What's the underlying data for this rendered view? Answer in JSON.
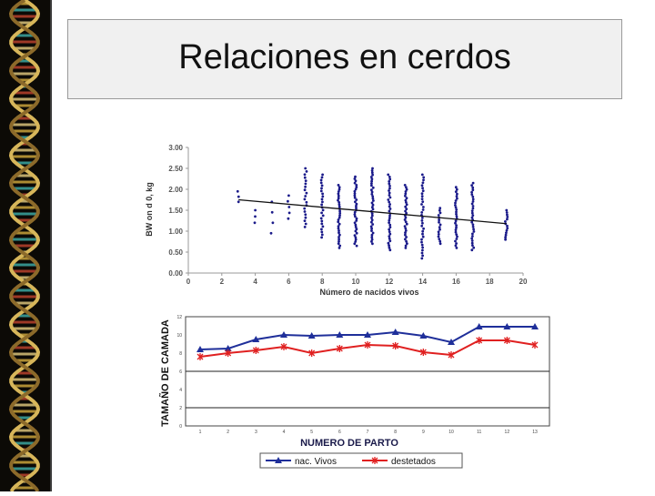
{
  "slide": {
    "title": "Relaciones en cerdos",
    "colors": {
      "title_box": "#f0f0f0",
      "side_band": "#0c0a06"
    },
    "decoration": "dna-double-helix-strip"
  },
  "chart_data": [
    {
      "type": "scatter",
      "xlabel": "Número de nacidos vivos",
      "ylabel": "BW on d 0, kg",
      "xlim": [
        0,
        20
      ],
      "ylim": [
        0,
        3
      ],
      "xticks": [
        "0",
        "2",
        "4",
        "6",
        "8",
        "10",
        "12",
        "14",
        "16",
        "18",
        "20"
      ],
      "yticks": [
        "0.00",
        "0.50",
        "1.00",
        "1.50",
        "2.00",
        "2.50",
        "3.00"
      ],
      "point_color": "#1a1a8a",
      "trendline": {
        "x": [
          3,
          19
        ],
        "y": [
          1.75,
          1.18
        ]
      },
      "columns": [
        {
          "x": 3,
          "ymin": 1.7,
          "ymax": 1.95,
          "n": 3
        },
        {
          "x": 4,
          "ymin": 1.2,
          "ymax": 1.5,
          "n": 3
        },
        {
          "x": 5,
          "ymin": 0.95,
          "ymax": 1.7,
          "n": 4
        },
        {
          "x": 6,
          "ymin": 1.3,
          "ymax": 1.85,
          "n": 5
        },
        {
          "x": 7,
          "ymin": 1.1,
          "ymax": 2.5,
          "n": 20
        },
        {
          "x": 8,
          "ymin": 0.85,
          "ymax": 2.35,
          "n": 24
        },
        {
          "x": 9,
          "ymin": 0.6,
          "ymax": 2.1,
          "n": 30
        },
        {
          "x": 10,
          "ymin": 0.65,
          "ymax": 2.3,
          "n": 34
        },
        {
          "x": 11,
          "ymin": 0.7,
          "ymax": 2.5,
          "n": 36
        },
        {
          "x": 12,
          "ymin": 0.55,
          "ymax": 2.35,
          "n": 34
        },
        {
          "x": 13,
          "ymin": 0.6,
          "ymax": 2.1,
          "n": 30
        },
        {
          "x": 14,
          "ymin": 0.35,
          "ymax": 2.35,
          "n": 32
        },
        {
          "x": 15,
          "ymin": 0.7,
          "ymax": 1.55,
          "n": 16
        },
        {
          "x": 16,
          "ymin": 0.6,
          "ymax": 2.05,
          "n": 28
        },
        {
          "x": 17,
          "ymin": 0.55,
          "ymax": 2.15,
          "n": 30
        },
        {
          "x": 19,
          "ymin": 0.8,
          "ymax": 1.5,
          "n": 14
        }
      ]
    },
    {
      "type": "line",
      "xlabel": "NUMERO DE PARTO",
      "ylabel": "TAMAÑO DE CAMADA",
      "categories": [
        "1",
        "2",
        "3",
        "4",
        "5",
        "6",
        "7",
        "8",
        "9",
        "10",
        "11",
        "12",
        "13"
      ],
      "ylim": [
        0,
        12
      ],
      "yticks": [
        "0",
        "2",
        "4",
        "6",
        "8",
        "10",
        "12"
      ],
      "series": [
        {
          "name": "nac. Vivos",
          "color": "#1f2f9a",
          "marker": "triangle",
          "values": [
            8.4,
            8.5,
            9.5,
            10.0,
            9.9,
            10.0,
            10.0,
            10.3,
            9.9,
            9.2,
            10.9,
            10.9,
            10.9
          ]
        },
        {
          "name": "destetados",
          "color": "#e02020",
          "marker": "star",
          "values": [
            7.6,
            8.0,
            8.3,
            8.7,
            8.0,
            8.5,
            8.9,
            8.8,
            8.1,
            7.8,
            9.4,
            9.4,
            8.9
          ]
        }
      ],
      "hlines": [
        6,
        2
      ],
      "legend": "bottom"
    }
  ]
}
